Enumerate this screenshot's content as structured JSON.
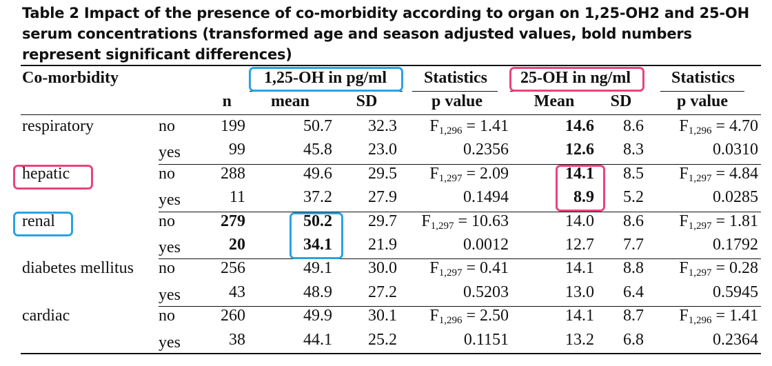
{
  "caption": "Table 2 Impact of the presence of co-morbidity according to organ on 1,25-OH2 and 25-OH serum concentrations (transformed age and season adjusted values, bold numbers represent significant differences)",
  "header": {
    "comorbidity": "Co-morbidity",
    "group_125": "1,25-OH in pg/ml",
    "stats1": "Statistics",
    "group_25": "25-OH in ng/ml",
    "stats2": "Statistics",
    "n": "n",
    "mean": "mean",
    "sd1": "SD",
    "pvalue1": "p value",
    "Mean": "Mean",
    "sd2": "SD",
    "pvalue2": "p value"
  },
  "rows": [
    {
      "label": "respiratory",
      "answer": "no",
      "n": "199",
      "mean1": "50.7",
      "sd1": "32.3",
      "stat1_pre": "F",
      "stat1_sub": "1,296",
      "stat1_post": " = 1.41",
      "mean2": "14.6",
      "sd2": "8.6",
      "stat2_pre": "F",
      "stat2_sub": "1,296",
      "stat2_post": " = 4.70"
    },
    {
      "label": "",
      "answer": "yes",
      "n": "99",
      "mean1": "45.8",
      "sd1": "23.0",
      "p1": "0.2356",
      "mean2": "12.6",
      "sd2": "8.3",
      "p2": "0.0310"
    },
    {
      "label": "hepatic",
      "answer": "no",
      "n": "288",
      "mean1": "49.6",
      "sd1": "29.5",
      "stat1_pre": "F",
      "stat1_sub": "1,297",
      "stat1_post": " = 2.09",
      "mean2": "14.1",
      "sd2": "8.5",
      "stat2_pre": "F",
      "stat2_sub": "1,297",
      "stat2_post": " = 4.84"
    },
    {
      "label": "",
      "answer": "yes",
      "n": "11",
      "mean1": "37.2",
      "sd1": "27.9",
      "p1": "0.1494",
      "mean2": "8.9",
      "sd2": "5.2",
      "p2": "0.0285"
    },
    {
      "label": "renal",
      "answer": "no",
      "n": "279",
      "mean1": "50.2",
      "sd1": "29.7",
      "stat1_pre": "F",
      "stat1_sub": "1,297",
      "stat1_post": " = 10.63",
      "mean2": "14.0",
      "sd2": "8.6",
      "stat2_pre": "F",
      "stat2_sub": "1,297",
      "stat2_post": " = 1.81"
    },
    {
      "label": "",
      "answer": "yes",
      "n": "20",
      "mean1": "34.1",
      "sd1": "21.9",
      "p1": "0.0012",
      "mean2": "12.7",
      "sd2": "7.7",
      "p2": "0.1792"
    },
    {
      "label": "diabetes mellitus",
      "answer": "no",
      "n": "256",
      "mean1": "49.1",
      "sd1": "30.0",
      "stat1_pre": "F",
      "stat1_sub": "1,297",
      "stat1_post": " = 0.41",
      "mean2": "14.1",
      "sd2": "8.8",
      "stat2_pre": "F",
      "stat2_sub": "1,297",
      "stat2_post": " = 0.28"
    },
    {
      "label": "",
      "answer": "yes",
      "n": "43",
      "mean1": "48.9",
      "sd1": "27.2",
      "p1": "0.5203",
      "mean2": "13.0",
      "sd2": "6.4",
      "p2": "0.5945"
    },
    {
      "label": "cardiac",
      "answer": "no",
      "n": "260",
      "mean1": "49.9",
      "sd1": "30.1",
      "stat1_pre": "F",
      "stat1_sub": "1,296",
      "stat1_post": " = 2.50",
      "mean2": "14.1",
      "sd2": "8.7",
      "stat2_pre": "F",
      "stat2_sub": "1,296",
      "stat2_post": " = 1.41"
    },
    {
      "label": "",
      "answer": "yes",
      "n": "38",
      "mean1": "44.1",
      "sd1": "25.2",
      "p1": "0.1151",
      "mean2": "13.2",
      "sd2": "6.8",
      "p2": "0.2364"
    }
  ],
  "colors": {
    "highlight_blue": "#29a3e0",
    "highlight_pink": "#e8447a"
  }
}
